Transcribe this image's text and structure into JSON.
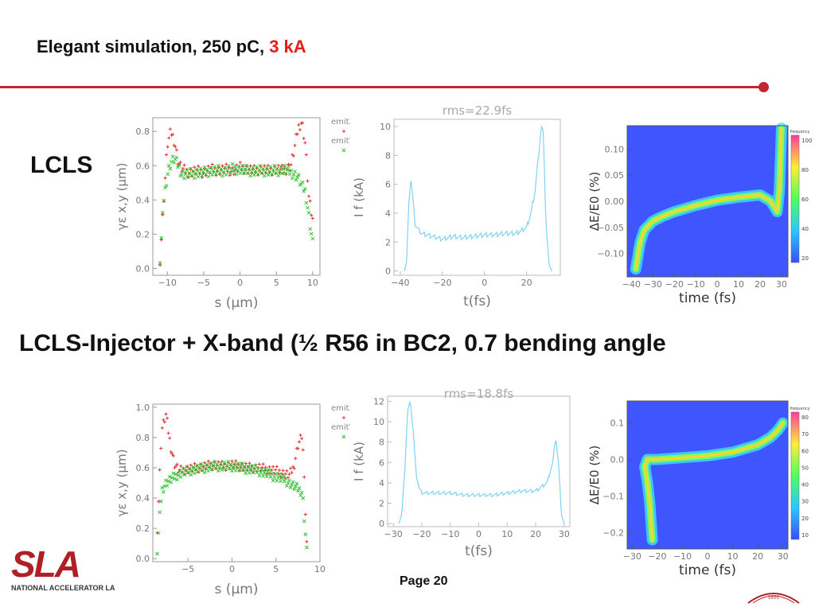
{
  "slide": {
    "title_prefix": "Elegant simulation, 250 pC, ",
    "title_accent": "3 kA",
    "section1_label": "LCLS",
    "section2_label": "LCLS-Injector + X-band (½ R56 in BC2, 0.7 bending angle",
    "page_label": "Page 20"
  },
  "logo": {
    "text": "SLA",
    "subtext": "NATIONAL ACCELERATOR LA",
    "seal_text": "1891"
  },
  "colors": {
    "accent_red": "#e0201a",
    "rule_red": "#c1272d",
    "current_line": "#7fd3f0",
    "emitX": "#e03030",
    "emitY": "#30c030"
  },
  "chart_data": [
    {
      "id": "lcls-emittance",
      "type": "scatter",
      "xlabel": "s (μm)",
      "ylabel": "γε x,y (μm)",
      "xlim": [
        -12,
        11
      ],
      "ylim": [
        -0.04,
        0.88
      ],
      "xticks": [
        "−10",
        "−5",
        "0",
        "5",
        "10"
      ],
      "yticks": [
        "0.0",
        "0.2",
        "0.4",
        "0.6",
        "0.8"
      ],
      "series": [
        {
          "name": "emitX",
          "x": [
            -11,
            -10.5,
            -10,
            -9.5,
            -9,
            -8.5,
            -8,
            -7,
            -6,
            -5,
            -4,
            -3,
            -2,
            -1,
            0,
            1,
            2,
            3,
            4,
            5,
            6,
            7,
            7.5,
            8,
            8.5,
            9,
            9.5,
            10
          ],
          "y": [
            0.05,
            0.4,
            0.72,
            0.8,
            0.74,
            0.62,
            0.58,
            0.56,
            0.57,
            0.56,
            0.58,
            0.57,
            0.58,
            0.57,
            0.59,
            0.58,
            0.57,
            0.58,
            0.57,
            0.58,
            0.57,
            0.6,
            0.7,
            0.82,
            0.86,
            0.72,
            0.4,
            0.28
          ]
        },
        {
          "name": "emitY",
          "x": [
            -11,
            -10.5,
            -10,
            -9.5,
            -9,
            -8.5,
            -8,
            -7,
            -6,
            -5,
            -4,
            -3,
            -2,
            -1,
            0,
            1,
            2,
            3,
            4,
            5,
            6,
            7,
            7.5,
            8,
            8.5,
            9,
            9.5,
            10
          ],
          "y": [
            0.05,
            0.4,
            0.55,
            0.62,
            0.64,
            0.6,
            0.55,
            0.55,
            0.56,
            0.56,
            0.57,
            0.57,
            0.57,
            0.58,
            0.58,
            0.57,
            0.57,
            0.57,
            0.57,
            0.57,
            0.58,
            0.56,
            0.55,
            0.53,
            0.48,
            0.45,
            0.3,
            0.15
          ]
        }
      ]
    },
    {
      "id": "lcls-current",
      "type": "line",
      "title": "rms=22.9fs",
      "xlabel": "t(fs)",
      "ylabel": "I f (kA)",
      "xlim": [
        -43,
        36
      ],
      "ylim": [
        -0.3,
        10.5
      ],
      "xticks": [
        "−40",
        "−20",
        "0",
        "20"
      ],
      "yticks": [
        "0",
        "2",
        "4",
        "6",
        "8",
        "10"
      ],
      "x": [
        -38,
        -37,
        -36,
        -35,
        -34,
        -33,
        -30,
        -25,
        -20,
        -15,
        -10,
        -5,
        0,
        5,
        10,
        15,
        20,
        22,
        24,
        25,
        26,
        27,
        28,
        29,
        30,
        31,
        32
      ],
      "y": [
        0,
        0.6,
        4.5,
        6.5,
        5,
        3.2,
        2.6,
        2.4,
        2.2,
        2.4,
        2.3,
        2.4,
        2.5,
        2.5,
        2.6,
        2.6,
        3,
        4,
        5.5,
        7,
        8.5,
        10,
        9.5,
        4,
        1.5,
        0.3,
        0
      ]
    },
    {
      "id": "lcls-longphase",
      "type": "heatmap",
      "xlabel": "time (fs)",
      "ylabel": "ΔE/E0 (%)",
      "xlim": [
        -42,
        33
      ],
      "ylim": [
        -0.145,
        0.145
      ],
      "xticks": [
        "−40",
        "−30",
        "−20",
        "−10",
        "0",
        "10",
        "20",
        "30"
      ],
      "yticks": [
        "0.10",
        "0.05",
        "0.00",
        "−0.05",
        "−0.10"
      ],
      "colorbar_label": "frequency",
      "colorbar_ticks": [
        "100",
        "80",
        "60",
        "40",
        "20"
      ],
      "ridge": {
        "t": [
          -38,
          -36,
          -34,
          -30,
          -25,
          -20,
          -10,
          0,
          10,
          20,
          25,
          28,
          29,
          30
        ],
        "dE": [
          -0.13,
          -0.08,
          -0.055,
          -0.038,
          -0.028,
          -0.02,
          -0.008,
          0.002,
          0.008,
          0.012,
          0.0,
          -0.02,
          0.02,
          0.14
        ]
      }
    },
    {
      "id": "xband-emittance",
      "type": "scatter",
      "xlabel": "s (μm)",
      "ylabel": "γε x,y (μm)",
      "xlim": [
        -9,
        10
      ],
      "ylim": [
        -0.02,
        1.02
      ],
      "xticks": [
        "−5",
        "0",
        "5",
        "10"
      ],
      "yticks": [
        "0.0",
        "0.2",
        "0.4",
        "0.6",
        "0.8",
        "1.0"
      ],
      "series": [
        {
          "name": "emitX",
          "x": [
            -8.5,
            -8,
            -7.5,
            -7,
            -6.5,
            -6,
            -5,
            -4,
            -3,
            -2,
            -1,
            0,
            1,
            2,
            3,
            4,
            5,
            6,
            6.5,
            7,
            7.5,
            8,
            8.5
          ],
          "y": [
            0.2,
            0.85,
            0.95,
            0.75,
            0.62,
            0.58,
            0.59,
            0.6,
            0.61,
            0.62,
            0.61,
            0.62,
            0.61,
            0.6,
            0.6,
            0.59,
            0.58,
            0.56,
            0.55,
            0.6,
            0.75,
            0.82,
            0.1
          ]
        },
        {
          "name": "emitY",
          "x": [
            -8.5,
            -8,
            -7.5,
            -7,
            -6.5,
            -6,
            -5,
            -4,
            -3,
            -2,
            -1,
            0,
            1,
            2,
            3,
            4,
            5,
            6,
            6.5,
            7,
            7.5,
            8,
            8.5
          ],
          "y": [
            0.05,
            0.45,
            0.5,
            0.52,
            0.54,
            0.56,
            0.58,
            0.59,
            0.6,
            0.61,
            0.61,
            0.61,
            0.6,
            0.59,
            0.58,
            0.56,
            0.54,
            0.52,
            0.5,
            0.48,
            0.46,
            0.44,
            0.05
          ]
        }
      ]
    },
    {
      "id": "xband-current",
      "type": "line",
      "title": "rms=18.8fs",
      "xlabel": "t(fs)",
      "ylabel": "I f (kA)",
      "xlim": [
        -32,
        32
      ],
      "ylim": [
        -0.3,
        12.5
      ],
      "xticks": [
        "−30",
        "−20",
        "−10",
        "0",
        "10",
        "20",
        "30"
      ],
      "yticks": [
        "0",
        "2",
        "4",
        "6",
        "8",
        "10",
        "12"
      ],
      "x": [
        -28,
        -27,
        -26,
        -25,
        -24,
        -23,
        -22,
        -21,
        -20,
        -15,
        -10,
        -5,
        0,
        5,
        10,
        15,
        20,
        24,
        26,
        27,
        28,
        29,
        30
      ],
      "y": [
        0,
        1,
        5,
        11,
        12,
        9,
        5,
        3.5,
        3,
        3,
        3,
        2.8,
        2.8,
        2.8,
        3,
        3.2,
        3.2,
        4,
        6,
        8.5,
        6,
        1,
        0
      ]
    },
    {
      "id": "xband-longphase",
      "type": "heatmap",
      "xlabel": "time (fs)",
      "ylabel": "ΔE/E0 (%)",
      "xlim": [
        -32,
        32
      ],
      "ylim": [
        -0.245,
        0.16
      ],
      "xticks": [
        "−30",
        "−20",
        "−10",
        "0",
        "10",
        "20",
        "30"
      ],
      "yticks": [
        "0.1",
        "0.0",
        "−0.1",
        "−0.2"
      ],
      "colorbar_label": "frequency",
      "colorbar_ticks": [
        "80",
        "70",
        "60",
        "50",
        "40",
        "30",
        "20",
        "10"
      ],
      "ridge": {
        "t": [
          -22,
          -23,
          -24,
          -25,
          -24,
          -20,
          -10,
          0,
          10,
          20,
          25,
          28,
          30
        ],
        "dE": [
          -0.22,
          -0.12,
          -0.06,
          -0.02,
          0.0,
          0.0,
          0.005,
          0.01,
          0.02,
          0.04,
          0.06,
          0.08,
          0.1
        ]
      }
    }
  ]
}
